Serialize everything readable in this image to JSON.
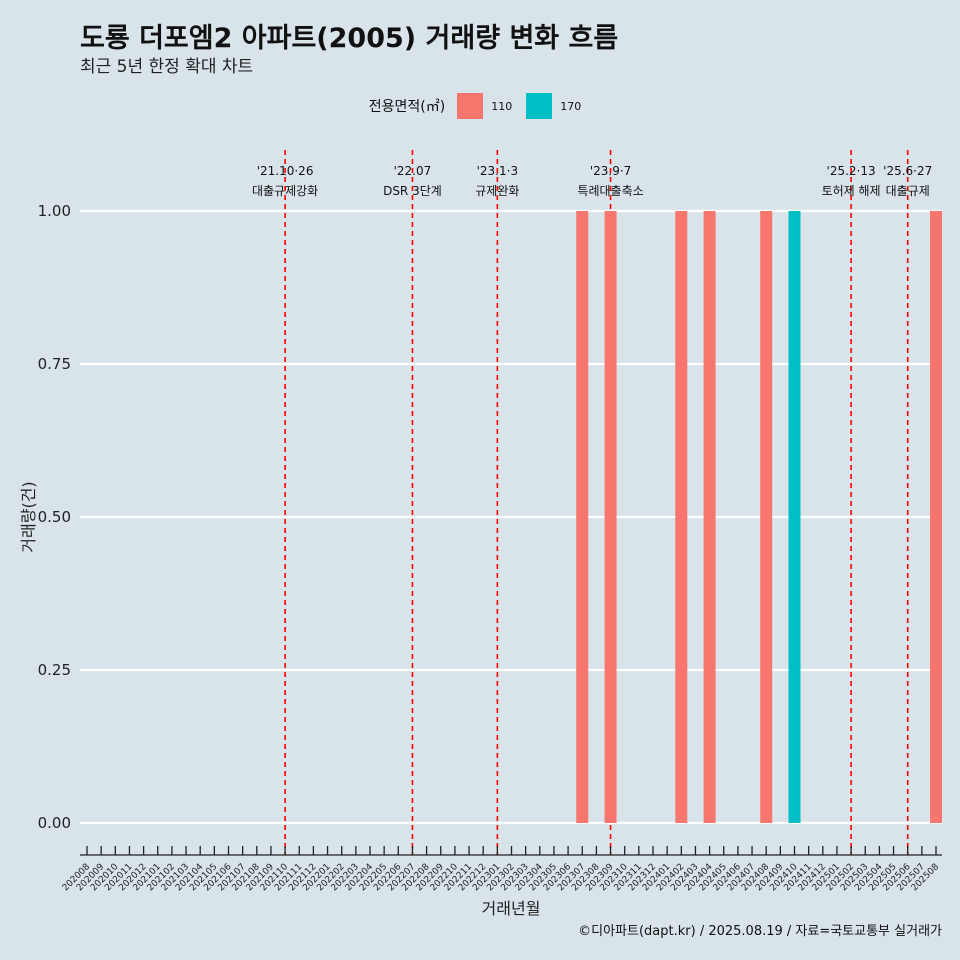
{
  "header": {
    "title": "도룡 더포엠2 아파트(2005) 거래량 변화 흐름",
    "subtitle": "최근 5년 한정 확대 차트"
  },
  "legend": {
    "title": "전용면적(㎡)",
    "items": [
      {
        "label": "110",
        "color": "#f8766d"
      },
      {
        "label": "170",
        "color": "#00bfc4"
      }
    ]
  },
  "caption": "©디아파트(dapt.kr) / 2025.08.19 / 자료=국토교통부 실거래가",
  "chart_data": {
    "type": "bar",
    "xlabel": "거래년월",
    "ylabel": "거래량(건)",
    "ylim": [
      0,
      1
    ],
    "yticks": [
      "0.00",
      "0.25",
      "0.50",
      "0.75",
      "1.00"
    ],
    "categories": [
      "202008",
      "202009",
      "202010",
      "202011",
      "202012",
      "202101",
      "202102",
      "202103",
      "202104",
      "202105",
      "202106",
      "202107",
      "202108",
      "202109",
      "202110",
      "202111",
      "202112",
      "202201",
      "202202",
      "202203",
      "202204",
      "202205",
      "202206",
      "202207",
      "202208",
      "202209",
      "202210",
      "202211",
      "202212",
      "202301",
      "202302",
      "202303",
      "202304",
      "202305",
      "202306",
      "202307",
      "202308",
      "202309",
      "202310",
      "202311",
      "202312",
      "202401",
      "202402",
      "202403",
      "202404",
      "202405",
      "202406",
      "202407",
      "202408",
      "202409",
      "202410",
      "202411",
      "202412",
      "202501",
      "202502",
      "202503",
      "202504",
      "202505",
      "202506",
      "202507",
      "202508"
    ],
    "bars": [
      {
        "x": "202307",
        "value": 1,
        "series": "110"
      },
      {
        "x": "202309",
        "value": 1,
        "series": "110"
      },
      {
        "x": "202402",
        "value": 1,
        "series": "110"
      },
      {
        "x": "202404",
        "value": 1,
        "series": "110"
      },
      {
        "x": "202408",
        "value": 1,
        "series": "110"
      },
      {
        "x": "202410",
        "value": 1,
        "series": "170"
      },
      {
        "x": "202508",
        "value": 1,
        "series": "110"
      }
    ],
    "events": [
      {
        "x": "202110",
        "date": "'21.10·26",
        "label": "대출규제강화"
      },
      {
        "x": "202207",
        "date": "'22.07",
        "label": "DSR 3단계"
      },
      {
        "x": "202301",
        "date": "'23.1·3",
        "label": "규제완화"
      },
      {
        "x": "202309",
        "date": "'23.9·7",
        "label": "특례대출축소"
      },
      {
        "x": "202502",
        "date": "'25.2·13",
        "label": "토허제 해제"
      },
      {
        "x": "202506",
        "date": "'25.6·27",
        "label": "대출규제"
      }
    ]
  }
}
